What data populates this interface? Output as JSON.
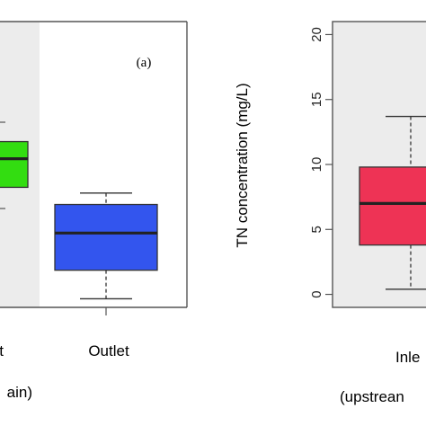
{
  "chart_data": [
    {
      "type": "box",
      "panel_label": "(a)",
      "categories": [
        "t",
        "Outlet"
      ],
      "axis_caption": "ain)",
      "boxes": [
        {
          "category": "t",
          "color": "#33dd11",
          "q1": 0.42,
          "median": 0.52,
          "q3": 0.58
        },
        {
          "category": "Outlet",
          "color": "#3355ee",
          "low": 0.03,
          "q1": 0.13,
          "median": 0.26,
          "q3": 0.36,
          "high": 0.4
        }
      ],
      "ylim": [
        0,
        1
      ]
    },
    {
      "type": "box",
      "ylabel": "TN concentration (mg/L)",
      "ylim": [
        -1,
        21
      ],
      "yticks": [
        0,
        5,
        10,
        15,
        20
      ],
      "categories": [
        "Inle"
      ],
      "axis_caption": "(upstrean",
      "boxes": [
        {
          "category": "Inle",
          "color": "#ee3355",
          "low": 0.4,
          "q1": 3.8,
          "median": 7.0,
          "q3": 9.8,
          "high": 13.7
        }
      ]
    }
  ]
}
